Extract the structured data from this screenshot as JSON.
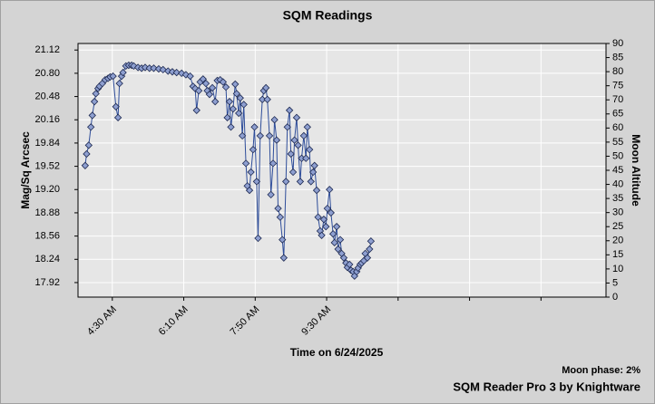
{
  "chart_data": {
    "type": "line",
    "title": "SQM Readings",
    "xlabel": "Time on 6/24/2025",
    "ylabel": "Mag/Sq Arcsec",
    "y2label": "Moon Altitude",
    "footer_phase": "Moon phase: 2%",
    "footer_credit": "SQM Reader Pro 3 by Knightware",
    "xlim": [
      222,
      961
    ],
    "xticks": [
      {
        "value": 270,
        "label": "4:30 AM"
      },
      {
        "value": 370,
        "label": "6:10 AM"
      },
      {
        "value": 470,
        "label": "7:50 AM"
      },
      {
        "value": 570,
        "label": "9:30 AM"
      },
      {
        "value": 670,
        "label": null
      },
      {
        "value": 770,
        "label": null
      },
      {
        "value": 870,
        "label": null
      }
    ],
    "ylim": [
      17.72,
      21.21
    ],
    "yticks": [
      17.92,
      18.24,
      18.56,
      18.88,
      {
        "value": 19.2,
        "label": "19.20"
      },
      19.52,
      19.84,
      20.16,
      20.48,
      {
        "value": 20.8,
        "label": "20.80"
      },
      21.12
    ],
    "y2lim": [
      0,
      90
    ],
    "y2ticks": [
      0,
      5,
      10,
      15,
      20,
      25,
      30,
      35,
      40,
      45,
      50,
      55,
      60,
      65,
      70,
      75,
      80,
      85,
      90
    ],
    "grid": true,
    "x": [
      232,
      234,
      237,
      240,
      242,
      245,
      247,
      250,
      252,
      256,
      260,
      264,
      267,
      271,
      275,
      278,
      280,
      283,
      285,
      289,
      293,
      297,
      300,
      306,
      311,
      316,
      322,
      328,
      335,
      341,
      348,
      354,
      360,
      367,
      373,
      379,
      383,
      386,
      388,
      391,
      393,
      397,
      401,
      403,
      406,
      410,
      414,
      417,
      421,
      425,
      429,
      431,
      434,
      436,
      439,
      442,
      444,
      447,
      449,
      452,
      454,
      457,
      459,
      462,
      464,
      467,
      469,
      472,
      474,
      477,
      480,
      482,
      485,
      487,
      490,
      492,
      495,
      497,
      500,
      502,
      505,
      508,
      510,
      513,
      515,
      518,
      520,
      523,
      525,
      528,
      530,
      533,
      535,
      538,
      541,
      543,
      546,
      548,
      551,
      553,
      556,
      558,
      561,
      563,
      566,
      569,
      571,
      574,
      576,
      579,
      581,
      584,
      586,
      589,
      591,
      594,
      597,
      599,
      602,
      604,
      607,
      609,
      612,
      614,
      617,
      619,
      622,
      624,
      627,
      630,
      632
    ],
    "series": [
      {
        "name": "SQM",
        "color": "#2e4d9a",
        "marker_color": "#8e9fd0",
        "values": [
          19.53,
          19.69,
          19.81,
          20.06,
          20.22,
          20.41,
          20.52,
          20.59,
          20.62,
          20.66,
          20.71,
          20.73,
          20.75,
          20.76,
          20.34,
          20.19,
          20.66,
          20.76,
          20.81,
          20.9,
          20.91,
          20.91,
          20.9,
          20.88,
          20.87,
          20.88,
          20.87,
          20.87,
          20.86,
          20.85,
          20.83,
          20.82,
          20.81,
          20.8,
          20.78,
          20.76,
          20.62,
          20.59,
          20.29,
          20.56,
          20.68,
          20.72,
          20.66,
          20.56,
          20.51,
          20.6,
          20.41,
          20.7,
          20.71,
          20.68,
          20.61,
          20.19,
          20.41,
          20.06,
          20.31,
          20.65,
          20.52,
          20.25,
          20.46,
          19.94,
          20.37,
          19.56,
          19.25,
          19.19,
          19.44,
          19.75,
          20.06,
          19.31,
          18.53,
          19.94,
          20.44,
          20.56,
          20.6,
          20.44,
          19.94,
          19.13,
          19.56,
          20.16,
          19.88,
          18.94,
          18.82,
          18.51,
          18.26,
          19.31,
          20.06,
          20.29,
          19.69,
          19.44,
          19.88,
          20.19,
          19.81,
          19.31,
          19.63,
          19.94,
          19.63,
          20.06,
          19.75,
          19.31,
          19.44,
          19.53,
          19.19,
          18.82,
          18.63,
          18.57,
          18.79,
          18.69,
          18.94,
          19.2,
          18.88,
          18.59,
          18.47,
          18.69,
          18.38,
          18.51,
          18.32,
          18.26,
          18.19,
          18.13,
          18.17,
          18.09,
          18.07,
          18.01,
          18.07,
          18.12,
          18.17,
          18.19,
          18.22,
          18.32,
          18.26,
          18.38,
          18.49
        ]
      }
    ]
  }
}
